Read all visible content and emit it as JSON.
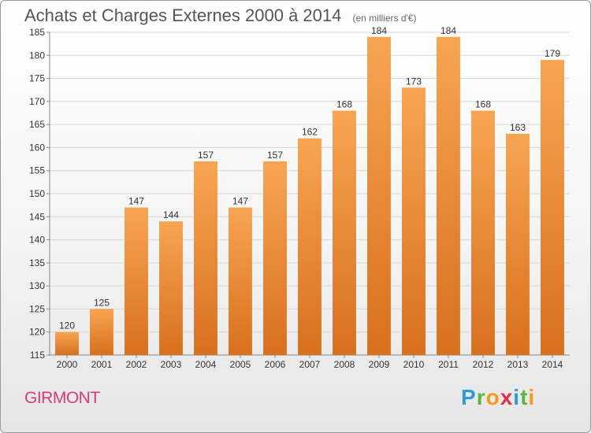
{
  "title": "Achats et Charges Externes 2000 à 2014",
  "subtitle": "(en milliers d'€)",
  "commune": "GIRMONT",
  "logo": {
    "text": "Proxiti",
    "letters": [
      "P",
      "r",
      "o",
      "x",
      "i",
      "t",
      "i"
    ],
    "colors": [
      "#2e9bd6",
      "#5bb540",
      "#f39a1a",
      "#e0304a",
      "#2e9bd6",
      "#5bb540",
      "#f39a1a"
    ]
  },
  "colors": {
    "bar_top": "#f7a552",
    "bar_bottom": "#d8701c",
    "grid": "#d6d6d6",
    "axis": "#888888",
    "commune": "#d63c78"
  },
  "chart_data": {
    "type": "bar",
    "title": "Achats et Charges Externes 2000 à 2014",
    "subtitle": "(en milliers d'€)",
    "categories": [
      "2000",
      "2001",
      "2002",
      "2003",
      "2004",
      "2005",
      "2006",
      "2007",
      "2008",
      "2009",
      "2010",
      "2011",
      "2012",
      "2013",
      "2014"
    ],
    "values": [
      120,
      125,
      147,
      144,
      157,
      147,
      157,
      162,
      168,
      184,
      173,
      184,
      168,
      163,
      179
    ],
    "ylim": [
      115,
      185
    ],
    "yticks": [
      115,
      120,
      125,
      130,
      135,
      140,
      145,
      150,
      155,
      160,
      165,
      170,
      175,
      180,
      185
    ],
    "grid": true,
    "data_labels": true
  }
}
